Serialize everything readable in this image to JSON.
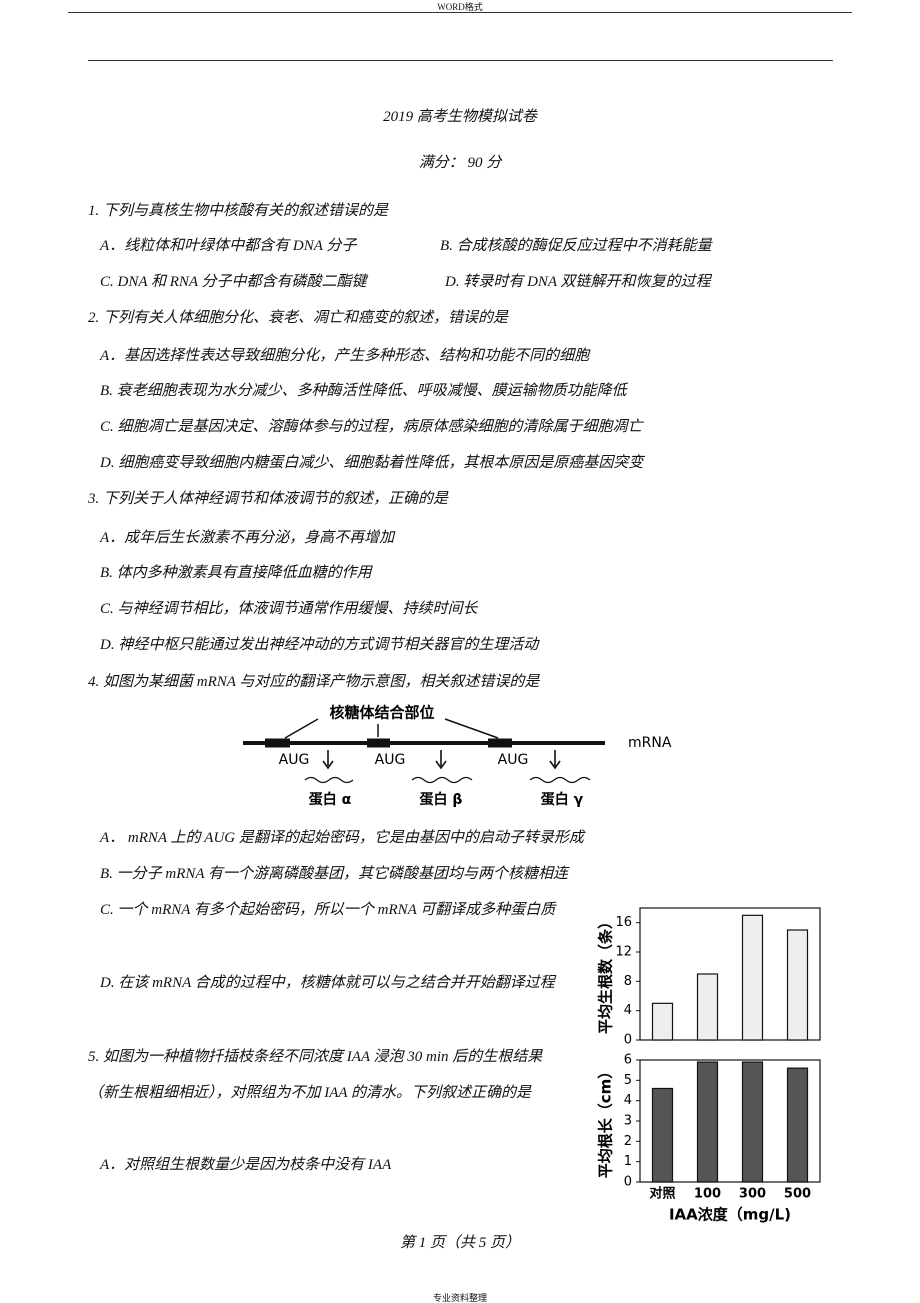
{
  "header": {
    "label": "WORD格式"
  },
  "title": "2019 高考生物模拟试卷",
  "subtitle": "满分： 90 分",
  "questions": [
    {
      "stem": "1. 下列与真核生物中核酸有关的叙述错误的是",
      "options": [
        "A．线粒体和叶绿体中都含有 DNA 分子",
        "B. 合成核酸的酶促反应过程中不消耗能量",
        "C. DNA 和 RNA 分子中都含有磷酸二酯键",
        "D. 转录时有 DNA 双链解开和恢复的过程"
      ]
    },
    {
      "stem": "2. 下列有关人体细胞分化、衰老、凋亡和癌变的叙述，错误的是",
      "options": [
        "A．基因选择性表达导致细胞分化，产生多种形态、结构和功能不同的细胞",
        "B. 衰老细胞表现为水分减少、多种酶活性降低、呼吸减慢、膜运输物质功能降低",
        "C. 细胞凋亡是基因决定、溶酶体参与的过程，病原体感染细胞的清除属于细胞凋亡",
        "D. 细胞癌变导致细胞内糖蛋白减少、细胞黏着性降低，其根本原因是原癌基因突变"
      ]
    },
    {
      "stem": "3. 下列关于人体神经调节和体液调节的叙述，正确的是",
      "options": [
        "A．成年后生长激素不再分泌，身高不再增加",
        "B. 体内多种激素具有直接降低血糖的作用",
        "C. 与神经调节相比，体液调节通常作用缓慢、持续时间长",
        "D. 神经中枢只能通过发出神经冲动的方式调节相关器官的生理活动"
      ]
    },
    {
      "stem": "4. 如图为某细菌 mRNA 与对应的翻译产物示意图，相关叙述错误的是",
      "options": [
        "A． mRNA 上的 AUG 是翻译的起始密码，它是由基因中的启动子转录形成",
        "B. 一分子 mRNA 有一个游离磷酸基团，其它磷酸基团均与两个核糖相连",
        "C. 一个 mRNA 有多个起始密码，所以一个 mRNA 可翻译成多种蛋白质",
        "D. 在该 mRNA 合成的过程中，核糖体就可以与之结合并开始翻译过程"
      ]
    },
    {
      "stem": "5. 如图为一种植物扦插枝条经不同浓度 IAA 浸泡 30 min 后的生根结果（新生根粗细相近），对照组为不加 IAA 的清水。下列叙述正确的是",
      "options": [
        "A．对照组生根数量少是因为枝条中没有 IAA"
      ]
    }
  ],
  "figure": {
    "site_label": "核糖体结合部位",
    "start_codons": [
      "AUG",
      "AUG",
      "AUG"
    ],
    "strand_label": "mRNA",
    "proteins": [
      "蛋白 α",
      "蛋白 β",
      "蛋白 γ"
    ]
  },
  "chart_data": [
    {
      "type": "bar",
      "y_label": "平均生根数（条）",
      "values": [
        5,
        9,
        17,
        15
      ],
      "color": "#eeeeee",
      "ylim": [
        0,
        18
      ],
      "yticks": [
        0,
        4,
        8,
        12,
        16
      ]
    },
    {
      "type": "bar",
      "y_label": "平均根长（cm）",
      "x_label": "IAA浓度（mg/L)",
      "categories": [
        "对照",
        "100",
        "300",
        "500"
      ],
      "values": [
        4.6,
        5.9,
        5.9,
        5.6
      ],
      "color": "#555555",
      "ylim": [
        0,
        6
      ],
      "yticks": [
        0,
        1,
        2,
        3,
        4,
        5,
        6
      ]
    }
  ],
  "footer": {
    "page": "第 1 页（共 5 页）",
    "note": "专业资料整理"
  }
}
